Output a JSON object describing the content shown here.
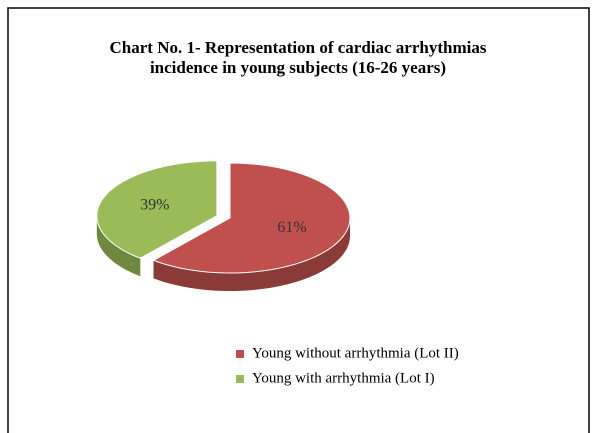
{
  "chart_data": {
    "type": "pie",
    "title": "Chart No. 1- Representation of cardiac arrhythmias incidence in young subjects (16-26 years)",
    "categories": [
      "Young without arrhythmia (Lot II)",
      "Young with arrhythmia (Lot I)"
    ],
    "values": [
      61,
      39
    ],
    "value_labels": [
      "61%",
      "39%"
    ],
    "colors": [
      "#c0504d",
      "#9bbb59"
    ],
    "legend": "bottom-right"
  }
}
